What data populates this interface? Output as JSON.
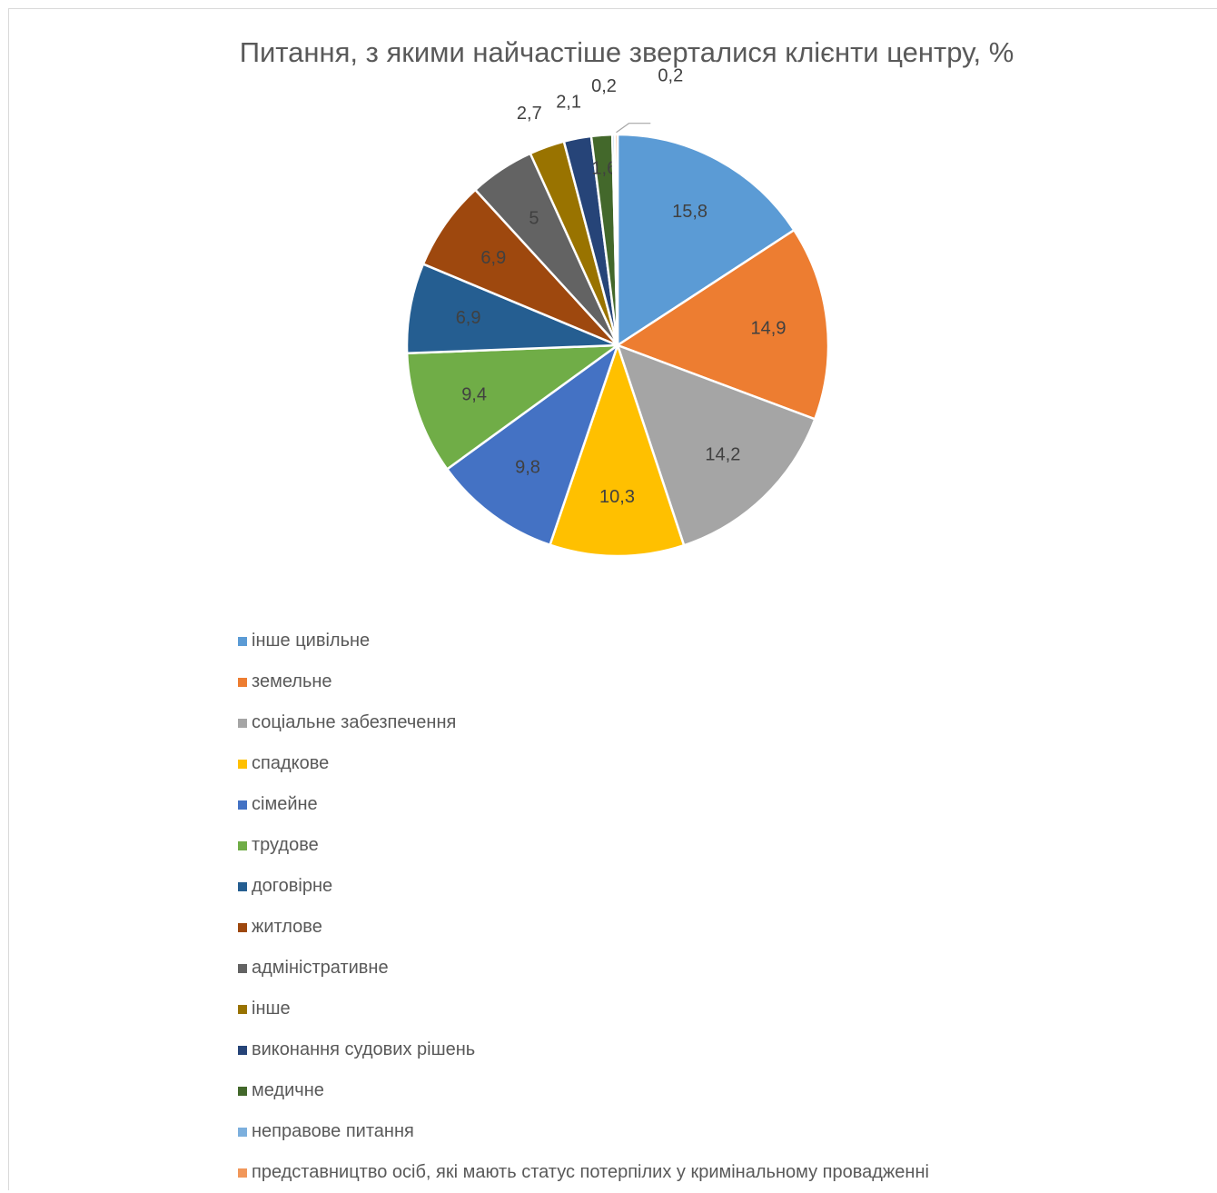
{
  "chart_data": {
    "type": "pie",
    "title": "Питання, з якими найчастіше зверталися клієнти центру, %",
    "legend_position": "bottom",
    "slices": [
      {
        "label": "інше цивільне",
        "value": 15.8,
        "display": "15,8",
        "color": "#5b9bd5"
      },
      {
        "label": "земельне",
        "value": 14.9,
        "display": "14,9",
        "color": "#ed7d31"
      },
      {
        "label": "соціальне забезпечення",
        "value": 14.2,
        "display": "14,2",
        "color": "#a5a5a5"
      },
      {
        "label": "спадкове",
        "value": 10.3,
        "display": "10,3",
        "color": "#ffc000"
      },
      {
        "label": "сімейне",
        "value": 9.8,
        "display": "9,8",
        "color": "#4472c4"
      },
      {
        "label": "трудове",
        "value": 9.4,
        "display": "9,4",
        "color": "#70ad47"
      },
      {
        "label": "договірне",
        "value": 6.9,
        "display": "6,9",
        "color": "#255e91"
      },
      {
        "label": "житлове",
        "value": 6.9,
        "display": "6,9",
        "color": "#9e480e"
      },
      {
        "label": "адміністративне",
        "value": 5,
        "display": "5",
        "color": "#636363"
      },
      {
        "label": "інше",
        "value": 2.7,
        "display": "2,7",
        "color": "#997300"
      },
      {
        "label": "виконання судових рішень",
        "value": 2.1,
        "display": "2,1",
        "color": "#264478"
      },
      {
        "label": "медичне",
        "value": 1.6,
        "display": "1,6",
        "color": "#43682b"
      },
      {
        "label": "неправове питання",
        "value": 0.2,
        "display": "0,2",
        "color": "#7cafdd"
      },
      {
        "label": "представництво осіб, які мають статус потерпілих у кримінальному провадженні",
        "value": 0.2,
        "display": "0,2",
        "color": "#f1975a"
      }
    ]
  }
}
